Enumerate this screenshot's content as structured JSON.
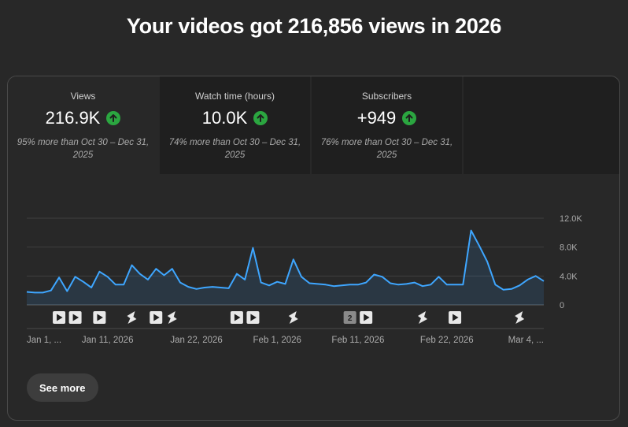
{
  "headline": "Your videos got 216,856 views in 2026",
  "tiles": [
    {
      "label": "Views",
      "value": "216.9K",
      "note": "95% more than Oct 30 – Dec 31, 2025",
      "trend_icon": "arrow-up-icon"
    },
    {
      "label": "Watch time (hours)",
      "value": "10.0K",
      "note": "74% more than Oct 30 – Dec 31, 2025",
      "trend_icon": "arrow-up-icon"
    },
    {
      "label": "Subscribers",
      "value": "+949",
      "note": "76% more than Oct 30 – Dec 31, 2025",
      "trend_icon": "arrow-up-icon"
    }
  ],
  "see_more_label": "See more",
  "colors": {
    "accent_line": "#3ea6ff",
    "trend_up": "#2ba640"
  },
  "chart_data": {
    "type": "area",
    "y_ticks": [
      "12.0K",
      "8.0K",
      "4.0K",
      "0"
    ],
    "ylim": [
      0,
      12000
    ],
    "x_tick_labels": [
      "Jan 1, ...",
      "Jan 11, 2026",
      "Jan 22, 2026",
      "Feb 1, 2026",
      "Feb 11, 2026",
      "Feb 22, 2026",
      "Mar 4, ..."
    ],
    "x_tick_index": [
      0,
      10,
      21,
      31,
      41,
      52,
      62
    ],
    "values": [
      1800,
      1700,
      1700,
      2000,
      3800,
      1900,
      3900,
      3200,
      2400,
      4600,
      3900,
      2800,
      2800,
      5500,
      4300,
      3500,
      5000,
      4100,
      5000,
      3100,
      2500,
      2200,
      2400,
      2500,
      2400,
      2300,
      4300,
      3500,
      7900,
      3100,
      2700,
      3200,
      2900,
      6300,
      3900,
      3000,
      2900,
      2800,
      2600,
      2700,
      2800,
      2800,
      3100,
      4200,
      3900,
      3000,
      2800,
      2900,
      3100,
      2600,
      2800,
      3900,
      2800,
      2800,
      2800,
      10300,
      8200,
      6000,
      2800,
      2100,
      2200,
      2700,
      3500,
      4000,
      3300
    ],
    "markers": [
      {
        "index": 4,
        "icon": "video-icon"
      },
      {
        "index": 6,
        "icon": "video-icon"
      },
      {
        "index": 9,
        "icon": "video-icon"
      },
      {
        "index": 13,
        "icon": "shorts-icon"
      },
      {
        "index": 16,
        "icon": "video-icon"
      },
      {
        "index": 18,
        "icon": "shorts-icon"
      },
      {
        "index": 26,
        "icon": "video-icon"
      },
      {
        "index": 28,
        "icon": "video-icon"
      },
      {
        "index": 33,
        "icon": "shorts-icon"
      },
      {
        "index": 40,
        "icon": "count-badge",
        "label": "2"
      },
      {
        "index": 42,
        "icon": "video-icon"
      },
      {
        "index": 49,
        "icon": "shorts-icon"
      },
      {
        "index": 53,
        "icon": "video-icon"
      },
      {
        "index": 61,
        "icon": "shorts-icon"
      }
    ]
  }
}
